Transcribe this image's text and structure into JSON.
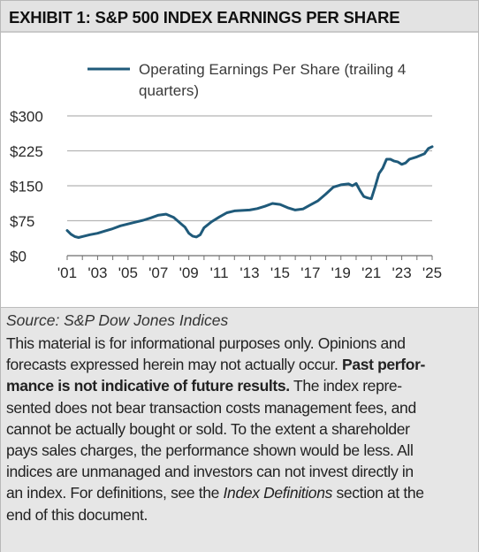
{
  "header": {
    "title": "EXHIBIT 1: S&P 500 INDEX EARNINGS PER SHARE"
  },
  "chart_data": {
    "type": "line",
    "title": "",
    "xlabel": "",
    "ylabel": "",
    "legend": {
      "placement": "top",
      "line1": "Operating Earnings Per Share (trailing 4",
      "line2": "quarters)"
    },
    "x_ticks": [
      "'01",
      "'03",
      "'05",
      "'07",
      "'09",
      "'11",
      "'13",
      "'15",
      "'17",
      "'19",
      "'21",
      "'23",
      "'25"
    ],
    "x_tick_values": [
      2001,
      2003,
      2005,
      2007,
      2009,
      2011,
      2013,
      2015,
      2017,
      2019,
      2021,
      2023,
      2025
    ],
    "xlim": [
      2001,
      2025
    ],
    "y_ticks": [
      "$0",
      "$75",
      "$150",
      "$225",
      "$300"
    ],
    "y_tick_values": [
      0,
      75,
      150,
      225,
      300
    ],
    "ylim": [
      0,
      300
    ],
    "grid": "horizontal",
    "colors": {
      "series": "#1f5a7a",
      "grid": "#b5b5b5",
      "axis": "#6e6e6e"
    },
    "series": [
      {
        "name": "Operating Earnings Per Share (trailing 4 quarters)",
        "x": [
          2001.0,
          2001.25,
          2001.5,
          2001.75,
          2002.0,
          2002.5,
          2003.0,
          2003.5,
          2004.0,
          2004.5,
          2005.0,
          2005.5,
          2006.0,
          2006.5,
          2007.0,
          2007.5,
          2008.0,
          2008.5,
          2008.75,
          2009.0,
          2009.25,
          2009.5,
          2009.75,
          2010.0,
          2010.5,
          2011.0,
          2011.5,
          2012.0,
          2012.5,
          2013.0,
          2013.5,
          2014.0,
          2014.5,
          2015.0,
          2015.5,
          2016.0,
          2016.5,
          2017.0,
          2017.5,
          2018.0,
          2018.5,
          2019.0,
          2019.5,
          2019.75,
          2020.0,
          2020.25,
          2020.5,
          2020.75,
          2021.0,
          2021.25,
          2021.5,
          2021.75,
          2022.0,
          2022.25,
          2022.5,
          2022.75,
          2023.0,
          2023.25,
          2023.5,
          2024.0,
          2024.5,
          2024.75,
          2025.0
        ],
        "values": [
          54,
          46,
          41,
          39,
          41,
          45,
          48,
          53,
          58,
          64,
          68,
          72,
          76,
          81,
          87,
          89,
          82,
          68,
          61,
          48,
          42,
          40,
          45,
          60,
          73,
          83,
          92,
          96,
          97,
          98,
          101,
          106,
          112,
          110,
          103,
          98,
          100,
          109,
          118,
          132,
          147,
          152,
          154,
          150,
          155,
          140,
          127,
          124,
          122,
          148,
          176,
          188,
          207,
          207,
          203,
          201,
          196,
          199,
          207,
          212,
          219,
          230,
          234
        ]
      }
    ]
  },
  "footer": {
    "source": "Source: S&P Dow Jones Indices",
    "lines": [
      {
        "a": "This material is for informational purposes only. Opinions and"
      },
      {
        "a": "forecasts expressed herein may not actually occur. ",
        "b": "Past perfor-"
      },
      {
        "b": "mance is not indicative of future results.",
        "a": " The index repre-"
      },
      {
        "a": "sented does not bear transaction costs management fees, and"
      },
      {
        "a": "cannot be actually bought or sold. To the extent a shareholder"
      },
      {
        "a": "pays sales charges, the performance shown would be less. All"
      },
      {
        "a": "indices are unmanaged and investors can not invest directly in"
      },
      {
        "a": "an index. For definitions, see the ",
        "i": "Index Definitions",
        "c": " section at the"
      },
      {
        "a": "end of this document."
      }
    ]
  }
}
